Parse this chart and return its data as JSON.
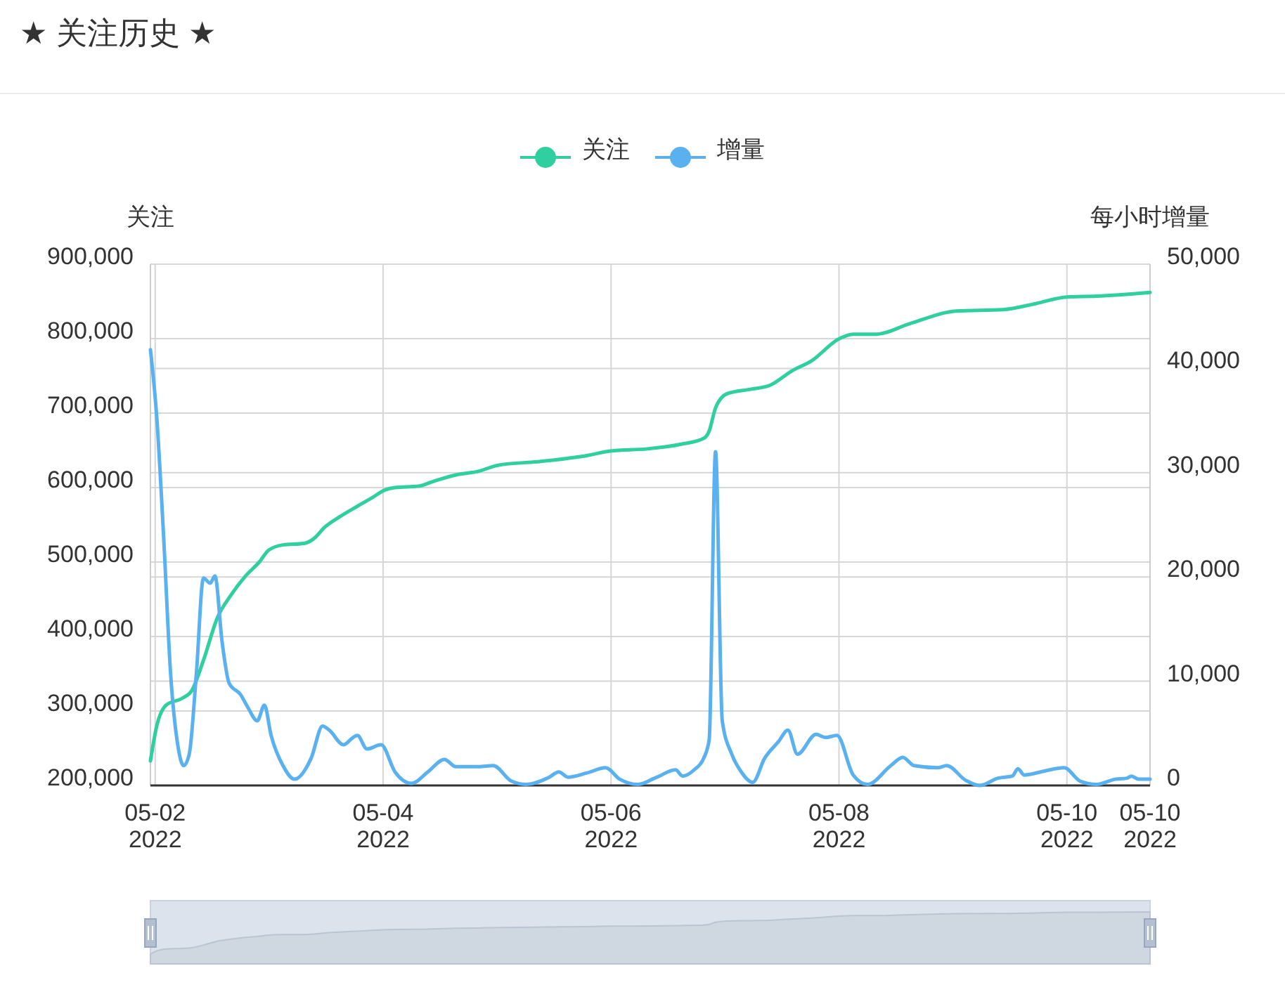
{
  "chart_data": {
    "type": "line",
    "title": "★ 关注历史 ★",
    "ylabel": "关注",
    "y2label": "每小时增量",
    "legend": "top",
    "grid": true,
    "xlim": [
      "2022-05-01T23:00",
      "2022-05-10T17:30"
    ],
    "xticks": [
      {
        "value": "2022-05-02",
        "label": "05-02\n2022"
      },
      {
        "value": "2022-05-04",
        "label": "05-04\n2022"
      },
      {
        "value": "2022-05-06",
        "label": "05-06\n2022"
      },
      {
        "value": "2022-05-08",
        "label": "05-08\n2022"
      },
      {
        "value": "2022-05-10",
        "label": "05-10\n2022"
      },
      {
        "value": "2022-05-10T17:30",
        "label": "05-10\n2022"
      }
    ],
    "ylim": [
      200000,
      900000
    ],
    "yticks": [
      {
        "value": 200000,
        "label": "200,000"
      },
      {
        "value": 300000,
        "label": "300,000"
      },
      {
        "value": 400000,
        "label": "400,000"
      },
      {
        "value": 500000,
        "label": "500,000"
      },
      {
        "value": 600000,
        "label": "600,000"
      },
      {
        "value": 700000,
        "label": "700,000"
      },
      {
        "value": 800000,
        "label": "800,000"
      },
      {
        "value": 900000,
        "label": "900,000"
      }
    ],
    "y2lim": [
      0,
      50000
    ],
    "y2ticks": [
      0,
      {
        "value": 10000,
        "label": "10,000"
      },
      {
        "value": 20000,
        "label": "20,000"
      },
      {
        "value": 30000,
        "label": "30,000"
      },
      {
        "value": 40000,
        "label": "40,000"
      },
      {
        "value": 50000,
        "label": "50,000"
      }
    ],
    "series": [
      {
        "name": "关注",
        "color": "#2fcfa0",
        "x": [
          "2022-05-01T23:00",
          "2022-05-02T00:20",
          "2022-05-02T02:20",
          "2022-05-02T05:40",
          "2022-05-02T07:40",
          "2022-05-02T10:10",
          "2022-05-02T13:05",
          "2022-05-02T16:00",
          "2022-05-02T19:00",
          "2022-05-02T21:55",
          "2022-05-02T23:55",
          "2022-05-03T02:55",
          "2022-05-03T07:20",
          "2022-05-03T09:20",
          "2022-05-03T11:45",
          "2022-05-03T14:40",
          "2022-05-03T18:35",
          "2022-05-03T21:35",
          "2022-05-04T00:30",
          "2022-05-04T02:30",
          "2022-05-04T07:30",
          "2022-05-04T10:25",
          "2022-05-04T15:20",
          "2022-05-04T20:10",
          "2022-05-05T00:10",
          "2022-05-05T09:00",
          "2022-05-05T18:55",
          "2022-05-05T23:50",
          "2022-05-06T07:40",
          "2022-05-06T14:35",
          "2022-05-06T19:30",
          "2022-05-06T20:40",
          "2022-05-06T22:00",
          "2022-05-07T00:25",
          "2022-05-07T05:20",
          "2022-05-07T09:20",
          "2022-05-07T14:10",
          "2022-05-07T18:10",
          "2022-05-08T00:05",
          "2022-05-08T03:00",
          "2022-05-08T07:55",
          "2022-05-08T14:50",
          "2022-05-09T00:40",
          "2022-05-09T10:30",
          "2022-05-09T17:25",
          "2022-05-10T00:00",
          "2022-05-10T06:15",
          "2022-05-10T17:30"
        ],
        "values": [
          233000,
          280000,
          308000,
          317000,
          327000,
          368000,
          425000,
          456000,
          481000,
          500000,
          516000,
          523000,
          525000,
          531000,
          547000,
          560000,
          575000,
          586000,
          597000,
          600000,
          602000,
          608000,
          617000,
          622000,
          630000,
          635000,
          643000,
          649000,
          652000,
          658000,
          666000,
          676000,
          707000,
          726000,
          732000,
          737000,
          757000,
          770000,
          800000,
          806000,
          806000,
          820000,
          837000,
          839000,
          847000,
          856000,
          857000,
          862000
        ]
      },
      {
        "name": "增量",
        "color": "#5ab1ef",
        "axis": "y2",
        "x": [
          "2022-05-01T23:00",
          "2022-05-02T00:20",
          "2022-05-02T01:45",
          "2022-05-02T03:15",
          "2022-05-02T04:45",
          "2022-05-02T06:00",
          "2022-05-02T07:10",
          "2022-05-02T08:40",
          "2022-05-02T10:10",
          "2022-05-02T11:35",
          "2022-05-02T12:35",
          "2022-05-02T14:05",
          "2022-05-02T15:35",
          "2022-05-02T18:00",
          "2022-05-02T19:30",
          "2022-05-02T21:30",
          "2022-05-02T23:00",
          "2022-05-03T00:25",
          "2022-05-03T02:55",
          "2022-05-03T05:20",
          "2022-05-03T08:50",
          "2022-05-03T11:15",
          "2022-05-03T12:40",
          "2022-05-03T15:40",
          "2022-05-03T17:40",
          "2022-05-03T18:35",
          "2022-05-03T20:35",
          "2022-05-03T23:35",
          "2022-05-04T02:30",
          "2022-05-04T06:00",
          "2022-05-04T09:25",
          "2022-05-04T12:55",
          "2022-05-04T15:20",
          "2022-05-04T20:10",
          "2022-05-04T23:10",
          "2022-05-05T03:05",
          "2022-05-05T06:05",
          "2022-05-05T11:00",
          "2022-05-05T13:00",
          "2022-05-05T14:55",
          "2022-05-05T18:55",
          "2022-05-05T22:50",
          "2022-05-06T01:50",
          "2022-05-06T05:40",
          "2022-05-06T09:40",
          "2022-05-06T13:35",
          "2022-05-06T15:05",
          "2022-05-06T17:30",
          "2022-05-06T19:30",
          "2022-05-06T20:40",
          "2022-05-06T22:00",
          "2022-05-06T23:25",
          "2022-05-07T01:25",
          "2022-05-07T03:25",
          "2022-05-07T05:50",
          "2022-05-07T08:20",
          "2022-05-07T11:15",
          "2022-05-07T13:15",
          "2022-05-07T15:15",
          "2022-05-07T19:10",
          "2022-05-07T21:10",
          "2022-05-07T23:35",
          "2022-05-08T03:00",
          "2022-05-08T06:00",
          "2022-05-08T10:55",
          "2022-05-08T13:25",
          "2022-05-08T15:50",
          "2022-05-08T20:45",
          "2022-05-08T22:40",
          "2022-05-09T02:40",
          "2022-05-09T05:40",
          "2022-05-09T09:30",
          "2022-05-09T12:30",
          "2022-05-09T13:40",
          "2022-05-09T15:00",
          "2022-05-09T19:25",
          "2022-05-09T23:25",
          "2022-05-10T02:50",
          "2022-05-10T06:15",
          "2022-05-10T10:10",
          "2022-05-10T12:40",
          "2022-05-10T13:35",
          "2022-05-10T15:05",
          "2022-05-10T17:30"
        ],
        "values": [
          41800,
          35300,
          24100,
          10700,
          3900,
          1900,
          3000,
          10700,
          19900,
          19400,
          20100,
          13800,
          9800,
          8700,
          7500,
          6200,
          7700,
          4800,
          1900,
          600,
          2600,
          5700,
          5300,
          3900,
          4600,
          4800,
          3500,
          3900,
          1300,
          200,
          1300,
          2500,
          1800,
          1800,
          1900,
          400,
          100,
          800,
          1300,
          800,
          1200,
          1700,
          600,
          100,
          800,
          1500,
          900,
          1500,
          2600,
          4400,
          32000,
          6200,
          3000,
          1300,
          300,
          2600,
          4200,
          5300,
          3000,
          4900,
          4600,
          4800,
          1000,
          100,
          1900,
          2700,
          1900,
          1700,
          1900,
          500,
          0,
          700,
          900,
          1600,
          1000,
          1400,
          1700,
          400,
          100,
          600,
          700,
          900,
          600,
          600
        ]
      }
    ]
  }
}
